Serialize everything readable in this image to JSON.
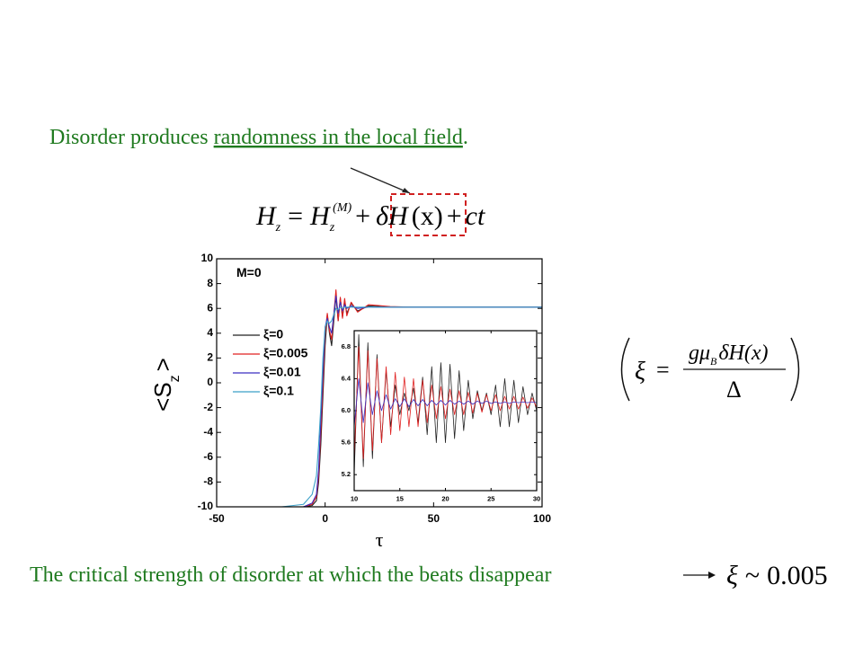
{
  "slide": {
    "heading": [
      "Disorder produces ",
      "randomness in the local field",
      "."
    ],
    "formula_top": [
      "H",
      "z",
      "=",
      "H",
      "z",
      "(M)",
      "+",
      "δH",
      "(x)",
      "+",
      "ct"
    ],
    "formula_xi": [
      "ξ",
      "=",
      "gμ",
      "B",
      "δH(x)",
      "Δ"
    ],
    "conclusion": "The critical strength of disorder at which the beats disappear",
    "formula_bottom": [
      "ξ",
      "~",
      "0.005"
    ]
  },
  "chart_data": [
    {
      "type": "line",
      "annotation": "M=0",
      "x_label": "τ",
      "y_label": [
        "<S",
        "z",
        ">"
      ],
      "xlim": [
        -50,
        100
      ],
      "xticks": [
        -50,
        0,
        50,
        100
      ],
      "ylim": [
        -10,
        10
      ],
      "yticks": [
        -10,
        -8,
        -6,
        -4,
        -2,
        0,
        2,
        4,
        6,
        8,
        10
      ],
      "legend": "center-left",
      "x": [
        -50,
        -30,
        -20,
        -10,
        -6,
        -4,
        -3,
        -2,
        -1,
        0,
        1,
        2,
        3,
        4,
        5,
        6,
        7,
        8,
        9,
        10,
        12,
        15,
        20,
        30,
        40,
        50,
        60,
        70,
        80,
        90,
        100
      ],
      "series": [
        {
          "name": "ξ=0",
          "color": "#222222",
          "values": [
            -10,
            -10,
            -10,
            -10,
            -9.9,
            -9.5,
            -8,
            -5,
            -1,
            3,
            5.5,
            4,
            3,
            5,
            7,
            5,
            6.8,
            5.3,
            6.6,
            5.6,
            6.4,
            5.8,
            6.2,
            6.1,
            6.1,
            6.1,
            6.1,
            6.1,
            6.1,
            6.1,
            6.1
          ]
        },
        {
          "name": "ξ=0.005",
          "color": "#e02020",
          "values": [
            -10,
            -10,
            -10,
            -10,
            -9.8,
            -9.2,
            -7.5,
            -4,
            0,
            4,
            5.6,
            4.2,
            3.5,
            5.5,
            7.5,
            5,
            6.9,
            5.2,
            6.8,
            5.4,
            6.5,
            5.7,
            6.3,
            6.15,
            6.1,
            6.1,
            6.1,
            6.1,
            6.1,
            6.1,
            6.1
          ]
        },
        {
          "name": "ξ=0.01",
          "color": "#3a2fc0",
          "values": [
            -10,
            -10,
            -10,
            -10,
            -9.7,
            -9,
            -7,
            -3,
            1,
            4.5,
            5.2,
            4.5,
            4,
            5.5,
            7,
            5.6,
            6.5,
            5.8,
            6.3,
            6.0,
            6.2,
            6.0,
            6.1,
            6.1,
            6.1,
            6.1,
            6.1,
            6.1,
            6.1,
            6.1,
            6.1
          ]
        },
        {
          "name": "ξ=0.1",
          "color": "#3aa0c8",
          "values": [
            -10,
            -10,
            -10,
            -9.8,
            -9,
            -7.5,
            -5,
            -2,
            2,
            4.5,
            5,
            4.8,
            5,
            5.5,
            6,
            5.9,
            6.1,
            6,
            6.1,
            6.1,
            6.1,
            6.1,
            6.1,
            6.1,
            6.1,
            6.1,
            6.1,
            6.1,
            6.1,
            6.1,
            6.1
          ]
        }
      ]
    },
    {
      "type": "line",
      "xlim": [
        10,
        30
      ],
      "xticks": [
        10,
        15,
        20,
        25,
        30
      ],
      "ylim": [
        5.0,
        7.0
      ],
      "yticks": [
        5.2,
        5.6,
        {
          "value": 6,
          "label": "6.0"
        },
        6.4,
        6.8
      ],
      "x": [
        10,
        10.5,
        11,
        11.5,
        12,
        12.5,
        13,
        13.5,
        14,
        14.5,
        15,
        15.5,
        16,
        16.5,
        17,
        17.5,
        18,
        18.5,
        19,
        19.5,
        20,
        20.5,
        21,
        21.5,
        22,
        22.5,
        23,
        23.5,
        24,
        24.5,
        25,
        25.5,
        26,
        26.5,
        27,
        27.5,
        28,
        28.5,
        29,
        29.5,
        30
      ],
      "series": [
        {
          "color": "#222222",
          "values": [
            5.2,
            6.95,
            5.3,
            6.85,
            5.4,
            6.7,
            5.6,
            6.5,
            5.8,
            6.32,
            5.95,
            6.22,
            6.0,
            6.28,
            5.85,
            6.42,
            5.7,
            6.55,
            5.6,
            6.6,
            5.6,
            6.58,
            5.65,
            6.5,
            5.75,
            6.38,
            5.9,
            6.25,
            6.0,
            6.22,
            5.95,
            6.32,
            5.8,
            6.4,
            5.8,
            6.38,
            5.85,
            6.3,
            5.95,
            6.22,
            6.0
          ]
        },
        {
          "color": "#e02020",
          "values": [
            5.4,
            6.8,
            5.4,
            6.75,
            5.5,
            6.65,
            5.6,
            6.55,
            5.7,
            6.48,
            5.75,
            6.42,
            5.8,
            6.4,
            5.8,
            6.38,
            5.85,
            6.32,
            5.9,
            6.3,
            5.9,
            6.27,
            5.95,
            6.25,
            5.95,
            6.23,
            5.97,
            6.22,
            5.98,
            6.2,
            6.0,
            6.2,
            6.0,
            6.18,
            6.02,
            6.18,
            6.02,
            6.17,
            6.03,
            6.16,
            6.04
          ]
        },
        {
          "color": "#3a2fc0",
          "values": [
            5.8,
            6.4,
            5.85,
            6.35,
            5.95,
            6.25,
            6.0,
            6.2,
            6.02,
            6.15,
            6.05,
            6.15,
            6.05,
            6.14,
            6.06,
            6.14,
            6.06,
            6.13,
            6.07,
            6.13,
            6.07,
            6.13,
            6.08,
            6.12,
            6.08,
            6.12,
            6.08,
            6.12,
            6.09,
            6.12,
            6.09,
            6.11,
            6.09,
            6.11,
            6.09,
            6.11,
            6.1,
            6.11,
            6.1,
            6.11,
            6.1
          ]
        }
      ]
    }
  ]
}
